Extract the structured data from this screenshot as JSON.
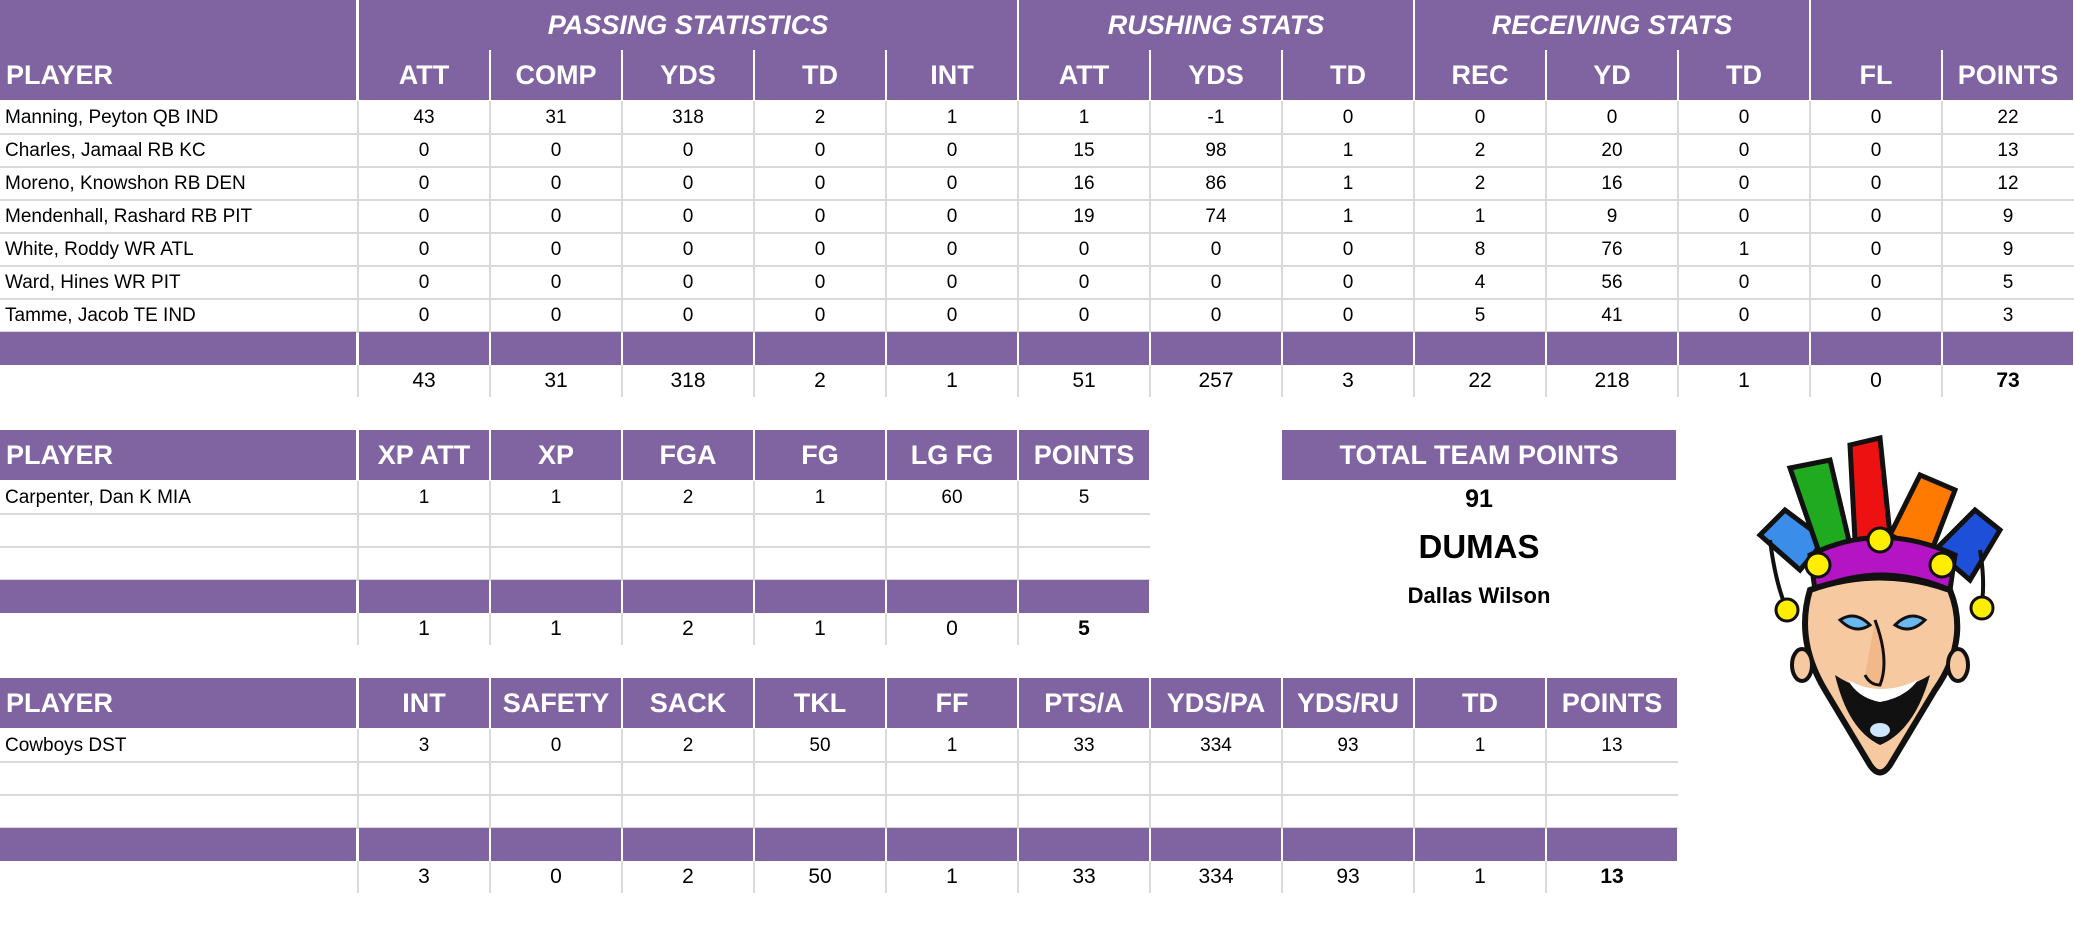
{
  "colors": {
    "header_purple": "#8064a2",
    "header_text": "#ffffff",
    "gridline": "#d9d9d9"
  },
  "offense": {
    "group_headers": [
      {
        "label": "PASSING STATISTICS"
      },
      {
        "label": "RUSHING STATS"
      },
      {
        "label": "RECEIVING STATS"
      },
      {
        "label": ""
      }
    ],
    "columns": [
      "PLAYER",
      "ATT",
      "COMP",
      "YDS",
      "TD",
      "INT",
      "ATT",
      "YDS",
      "TD",
      "REC",
      "YD",
      "TD",
      "FL",
      "POINTS"
    ],
    "rows": [
      {
        "player": "Manning, Peyton QB IND",
        "stats": [
          "43",
          "31",
          "318",
          "2",
          "1",
          "1",
          "-1",
          "0",
          "0",
          "0",
          "0",
          "0",
          "22"
        ]
      },
      {
        "player": "Charles, Jamaal RB KC",
        "stats": [
          "0",
          "0",
          "0",
          "0",
          "0",
          "15",
          "98",
          "1",
          "2",
          "20",
          "0",
          "0",
          "13"
        ]
      },
      {
        "player": "Moreno, Knowshon RB DEN",
        "stats": [
          "0",
          "0",
          "0",
          "0",
          "0",
          "16",
          "86",
          "1",
          "2",
          "16",
          "0",
          "0",
          "12"
        ]
      },
      {
        "player": "Mendenhall, Rashard RB PIT",
        "stats": [
          "0",
          "0",
          "0",
          "0",
          "0",
          "19",
          "74",
          "1",
          "1",
          "9",
          "0",
          "0",
          "9"
        ]
      },
      {
        "player": "White, Roddy WR ATL",
        "stats": [
          "0",
          "0",
          "0",
          "0",
          "0",
          "0",
          "0",
          "0",
          "8",
          "76",
          "1",
          "0",
          "9"
        ]
      },
      {
        "player": "Ward, Hines WR PIT",
        "stats": [
          "0",
          "0",
          "0",
          "0",
          "0",
          "0",
          "0",
          "0",
          "4",
          "56",
          "0",
          "0",
          "5"
        ]
      },
      {
        "player": "Tamme, Jacob TE IND",
        "stats": [
          "0",
          "0",
          "0",
          "0",
          "0",
          "0",
          "0",
          "0",
          "5",
          "41",
          "0",
          "0",
          "3"
        ]
      }
    ],
    "totals": [
      "43",
      "31",
      "318",
      "2",
      "1",
      "51",
      "257",
      "3",
      "22",
      "218",
      "1",
      "0",
      "73"
    ]
  },
  "kicker": {
    "columns": [
      "PLAYER",
      "XP ATT",
      "XP",
      "FGA",
      "FG",
      "LG FG",
      "POINTS"
    ],
    "rows": [
      {
        "player": "Carpenter, Dan K MIA",
        "stats": [
          "1",
          "1",
          "2",
          "1",
          "60",
          "5"
        ]
      },
      {
        "player": "",
        "stats": [
          "",
          "",
          "",
          "",
          "",
          ""
        ]
      },
      {
        "player": "",
        "stats": [
          "",
          "",
          "",
          "",
          "",
          ""
        ]
      }
    ],
    "totals": [
      "1",
      "1",
      "2",
      "1",
      "0",
      "5"
    ]
  },
  "defense": {
    "columns": [
      "PLAYER",
      "INT",
      "SAFETY",
      "SACK",
      "TKL",
      "FF",
      "PTS/A",
      "YDS/PA",
      "YDS/RU",
      "TD",
      "POINTS"
    ],
    "rows": [
      {
        "player": "Cowboys DST",
        "stats": [
          "3",
          "0",
          "2",
          "50",
          "1",
          "33",
          "334",
          "93",
          "1",
          "13"
        ]
      },
      {
        "player": "",
        "stats": [
          "",
          "",
          "",
          "",
          "",
          "",
          "",
          "",
          "",
          ""
        ]
      },
      {
        "player": "",
        "stats": [
          "",
          "",
          "",
          "",
          "",
          "",
          "",
          "",
          "",
          ""
        ]
      }
    ],
    "totals": [
      "3",
      "0",
      "2",
      "50",
      "1",
      "33",
      "334",
      "93",
      "1",
      "13"
    ]
  },
  "team_summary": {
    "title": "TOTAL TEAM POINTS",
    "total_points": "91",
    "team_name": "DUMAS",
    "owner": "Dallas Wilson"
  },
  "logo": {
    "icon": "jester-mascot-icon"
  }
}
